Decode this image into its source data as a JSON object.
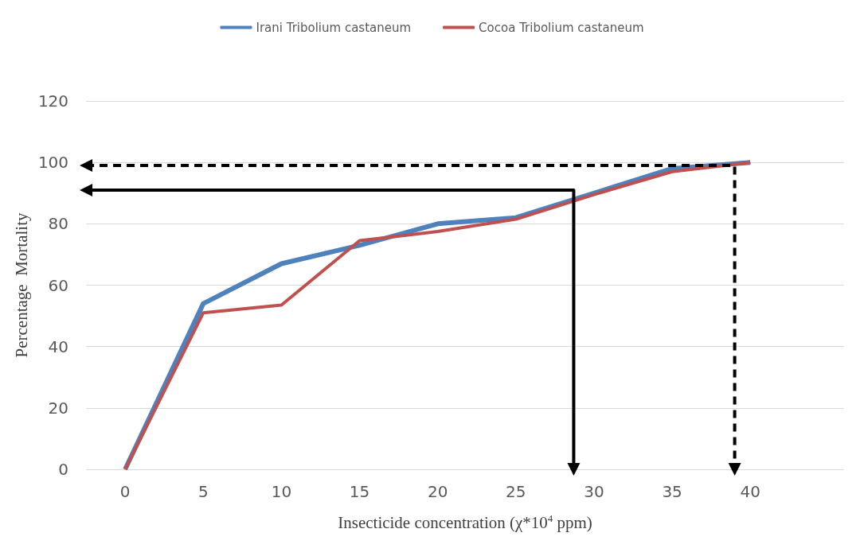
{
  "chart_data": {
    "type": "line",
    "xlabel": "Insecticide concentration (χ*10$^{4}$ ppm)",
    "ylabel": "Percentage  Mortality",
    "xlim": [
      -2.5,
      46
    ],
    "xticks": [
      0,
      5,
      10,
      15,
      20,
      25,
      30,
      35,
      40
    ],
    "ylim": [
      0,
      120
    ],
    "yticks": [
      0,
      20,
      40,
      60,
      80,
      100,
      120
    ],
    "grid": "y",
    "legend": "top",
    "marker": "none",
    "line_style": "solid",
    "series": [
      {
        "name": "Irani Tribolium castaneum",
        "color": "#4f81bd",
        "x": [
          0,
          5,
          10,
          15,
          20,
          25,
          30,
          35,
          40
        ],
        "values": [
          0,
          54,
          67,
          73,
          80,
          82,
          90,
          98,
          100
        ]
      },
      {
        "name": "Cocoa Tribolium castaneum",
        "color": "#c0504d",
        "x": [
          0,
          5,
          10,
          15,
          20,
          25,
          30,
          35,
          40
        ],
        "values": [
          0,
          51,
          53.5,
          74.5,
          77.5,
          81.5,
          89.5,
          97,
          100
        ]
      },
      {
        "color": "#000000",
        "x": [
          -2.5,
          28.7,
          28.7
        ],
        "values": [
          91,
          91,
          0
        ],
        "marker": "triangle",
        "line_style": "solid"
      },
      {
        "color": "#000000",
        "x": [
          -2.5,
          39,
          39
        ],
        "values": [
          99,
          99,
          0
        ],
        "marker": "triangle",
        "line_style": "dashed"
      }
    ]
  }
}
